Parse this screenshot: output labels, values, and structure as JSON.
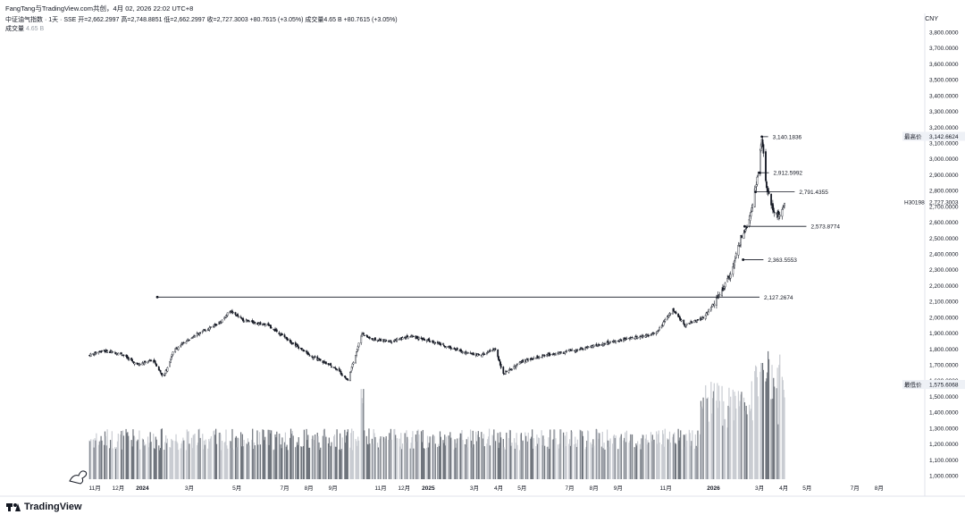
{
  "header": {
    "credit": "FangTang与TradingView.com共创，4月 02, 2026 22:02 UTC+8",
    "symbol_line": "中证油气指数 · 1天 · SSE  开=2,662.2997  高=2,748.8851  低=2,662.2997  收=2,727.3003  +80.7615 (+3.05%)  成交量4.65 B  +80.7615 (+3.05%)",
    "volume_label": "成交量",
    "volume_value": "4.65 B"
  },
  "currency": "CNY",
  "logo_text": "TradingView",
  "chart_data": {
    "type": "candlestick",
    "y_ticks": [
      "3,800.0000",
      "3,700.0000",
      "3,600.0000",
      "3,500.0000",
      "3,400.0000",
      "3,300.0000",
      "3,200.0000",
      "3,100.0000",
      "3,000.0000",
      "2,900.0000",
      "2,800.0000",
      "2,700.0000",
      "2,600.0000",
      "2,500.0000",
      "2,400.0000",
      "2,300.0000",
      "2,200.0000",
      "2,100.0000",
      "2,000.0000",
      "1,900.0000",
      "1,800.0000",
      "1,700.0000",
      "1,600.0000",
      "1,500.0000",
      "1,400.0000",
      "1,300.0000",
      "1,200.0000",
      "1,100.0000",
      "1,000.0000"
    ],
    "ylim": [
      1000,
      3800
    ],
    "x_ticks": [
      "11月",
      "12月",
      "2024",
      "3月",
      "5月",
      "7月",
      "8月",
      "9月",
      "11月",
      "12月",
      "2025",
      "3月",
      "4月",
      "5月",
      "7月",
      "8月",
      "9月",
      "11月",
      "2026",
      "3月",
      "4月",
      "5月",
      "7月",
      "8月"
    ],
    "bold_ticks": [
      "2024",
      "2025",
      "2026"
    ],
    "price_path": [
      [
        "2023-10-25",
        1760
      ],
      [
        "2023-11-10",
        1790
      ],
      [
        "2023-12-05",
        1770
      ],
      [
        "2023-12-25",
        1700
      ],
      [
        "2024-01-15",
        1730
      ],
      [
        "2024-01-28",
        1620
      ],
      [
        "2024-02-10",
        1790
      ],
      [
        "2024-03-05",
        1880
      ],
      [
        "2024-04-10",
        1970
      ],
      [
        "2024-04-22",
        2040
      ],
      [
        "2024-05-10",
        1980
      ],
      [
        "2024-06-10",
        1950
      ],
      [
        "2024-07-05",
        1860
      ],
      [
        "2024-08-05",
        1750
      ],
      [
        "2024-09-05",
        1680
      ],
      [
        "2024-09-20",
        1600
      ],
      [
        "2024-10-08",
        1900
      ],
      [
        "2024-10-20",
        1860
      ],
      [
        "2024-11-15",
        1850
      ],
      [
        "2024-12-10",
        1880
      ],
      [
        "2025-01-10",
        1840
      ],
      [
        "2025-02-15",
        1780
      ],
      [
        "2025-03-10",
        1760
      ],
      [
        "2025-03-28",
        1800
      ],
      [
        "2025-04-07",
        1640
      ],
      [
        "2025-05-01",
        1720
      ],
      [
        "2025-06-01",
        1760
      ],
      [
        "2025-07-15",
        1800
      ],
      [
        "2025-08-20",
        1840
      ],
      [
        "2025-09-20",
        1870
      ],
      [
        "2025-10-20",
        1900
      ],
      [
        "2025-11-10",
        2050
      ],
      [
        "2025-11-25",
        1950
      ],
      [
        "2025-12-20",
        2000
      ],
      [
        "2026-01-10",
        2150
      ],
      [
        "2026-01-25",
        2300
      ],
      [
        "2026-02-05",
        2500
      ],
      [
        "2026-02-15",
        2600
      ],
      [
        "2026-02-27",
        2900
      ],
      [
        "2026-03-04",
        3140
      ],
      [
        "2026-03-10",
        2820
      ],
      [
        "2026-03-20",
        2650
      ],
      [
        "2026-03-28",
        2640
      ],
      [
        "2026-04-02",
        2727
      ]
    ],
    "date_start": "2023-10-25",
    "date_end": "2026-04-02",
    "x_axis_end": "2026-08-31",
    "levels": [
      {
        "label": "3,140.1836",
        "value": 3140.1836,
        "from": "2026-03-04",
        "to": "2026-03-12"
      },
      {
        "label": "2,912.5992",
        "value": 2912.5992,
        "from": "2026-03-01",
        "to": "2026-03-13"
      },
      {
        "label": "2,791.4355",
        "value": 2791.4355,
        "from": "2026-02-24",
        "to": "2026-04-15"
      },
      {
        "label": "2,573.8774",
        "value": 2573.8774,
        "from": "2026-02-10",
        "to": "2026-04-30"
      },
      {
        "label": "2,363.5553",
        "value": 2363.5553,
        "from": "2026-02-08",
        "to": "2026-03-06"
      },
      {
        "label": "2,127.2674",
        "value": 2127.2674,
        "from": "2024-01-20",
        "to": "2026-03-01"
      }
    ],
    "markers": [
      {
        "label": "最高价",
        "value_text": "3,142.6624",
        "value": 3142.6624
      },
      {
        "label": "H30198",
        "value_text": "2,727.3003",
        "value": 2727.3003
      },
      {
        "label": "最低价",
        "value_text": "1,575.6068",
        "value": 1575.6068
      }
    ],
    "volume_peak_billion": 8.0
  }
}
